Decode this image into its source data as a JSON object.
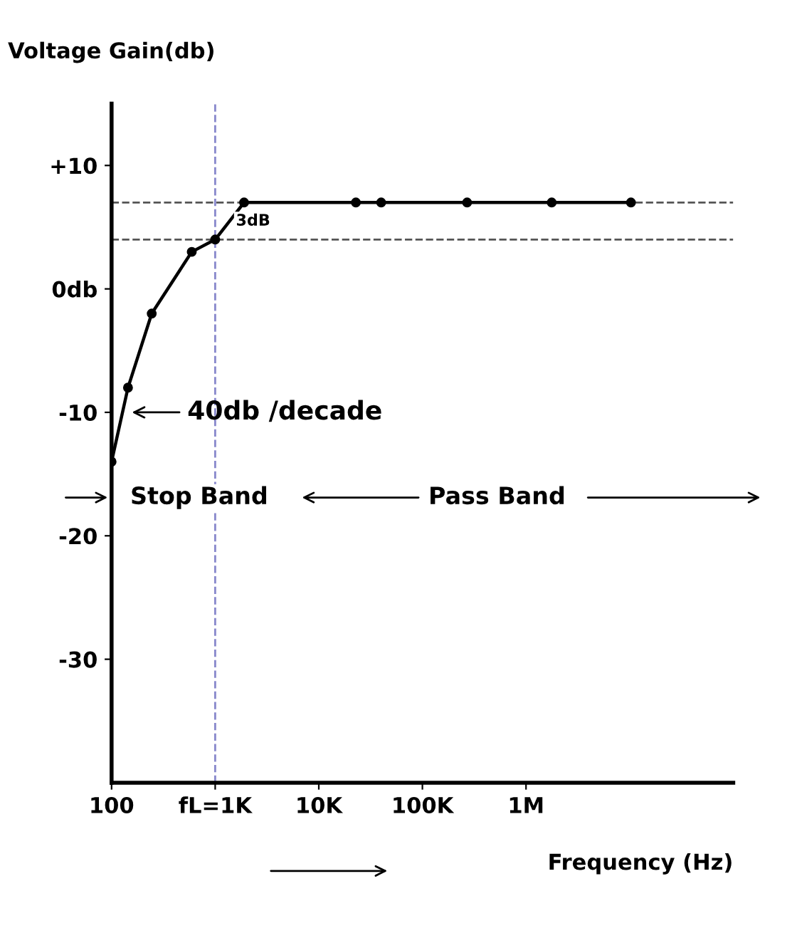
{
  "chart_data": {
    "type": "line",
    "ylabel": "Voltage Gain(db)",
    "xlabel": "Frequency (Hz)",
    "x": [
      100,
      144,
      244,
      594,
      1000,
      1900,
      22800,
      40000,
      270000,
      1770000,
      10300000
    ],
    "series": [
      {
        "color": "#000000",
        "values": [
          -14,
          -8,
          -2,
          3,
          4,
          7,
          7,
          7,
          7,
          7,
          7
        ]
      }
    ],
    "log": "x",
    "xlim": [
      100,
      100000000
    ],
    "ylim": [
      -40,
      15
    ],
    "xticks": [
      100,
      {
        "value": 1000,
        "label": "fL=1K"
      },
      {
        "value": 10000,
        "label": "10K"
      },
      {
        "value": 100000,
        "label": "100K"
      },
      {
        "value": 1000000,
        "label": "1M"
      }
    ],
    "yticks": [
      {
        "value": 10,
        "label": "+10"
      },
      {
        "value": 0,
        "label": "0db"
      },
      -10,
      -20,
      -30
    ],
    "marker": "circle",
    "line_style": "solid",
    "grid": false,
    "legend": false,
    "ref_lines": [
      {
        "axis": "y",
        "value": 7,
        "line_style": "dashed",
        "color": "#555555"
      },
      {
        "axis": "y",
        "value": 4,
        "line_style": "dashed",
        "color": "#555555"
      },
      {
        "axis": "x",
        "value": 1000,
        "line_style": "dashed",
        "color": "#8888cc"
      }
    ],
    "annotations": [
      "3dB",
      {
        "text": "40db /decade",
        "x": 144,
        "y": -10
      },
      "Stop Band",
      "Pass Band"
    ]
  }
}
